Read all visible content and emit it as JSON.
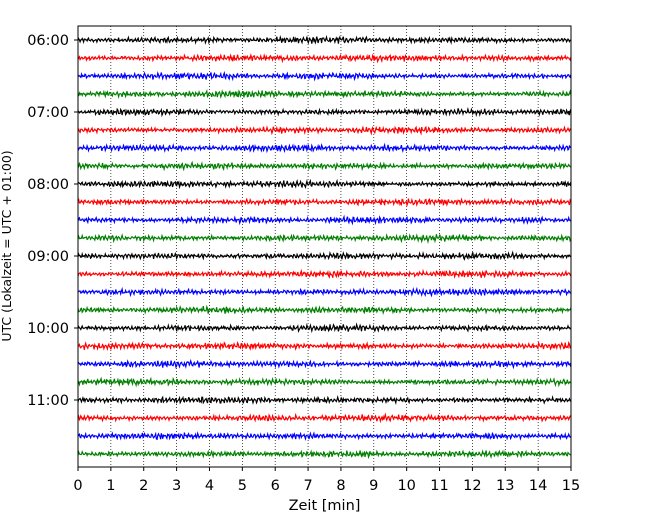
{
  "chart_data": {
    "type": "line",
    "title": "",
    "xlabel": "Zeit  [min]",
    "ylabel": "UTC (Lokalzeit = UTC + 01:00)",
    "xlim": [
      0,
      15
    ],
    "x_ticks": [
      "0",
      "1",
      "2",
      "3",
      "4",
      "5",
      "6",
      "7",
      "8",
      "9",
      "10",
      "11",
      "12",
      "13",
      "14",
      "15"
    ],
    "y_ticks": [
      "06:00",
      "07:00",
      "08:00",
      "09:00",
      "10:00",
      "11:00"
    ],
    "grid": "vertical dotted at each minute",
    "trace_interval_minutes": 15,
    "trace_colors": [
      "#000000",
      "#ff0000",
      "#0000ff",
      "#008000"
    ],
    "traces": [
      "06:00",
      "06:15",
      "06:30",
      "06:45",
      "07:00",
      "07:15",
      "07:30",
      "07:45",
      "08:00",
      "08:15",
      "08:30",
      "08:45",
      "09:00",
      "09:15",
      "09:30",
      "09:45",
      "10:00",
      "10:15",
      "10:30",
      "10:45",
      "11:00",
      "11:15",
      "11:30",
      "11:45"
    ]
  }
}
